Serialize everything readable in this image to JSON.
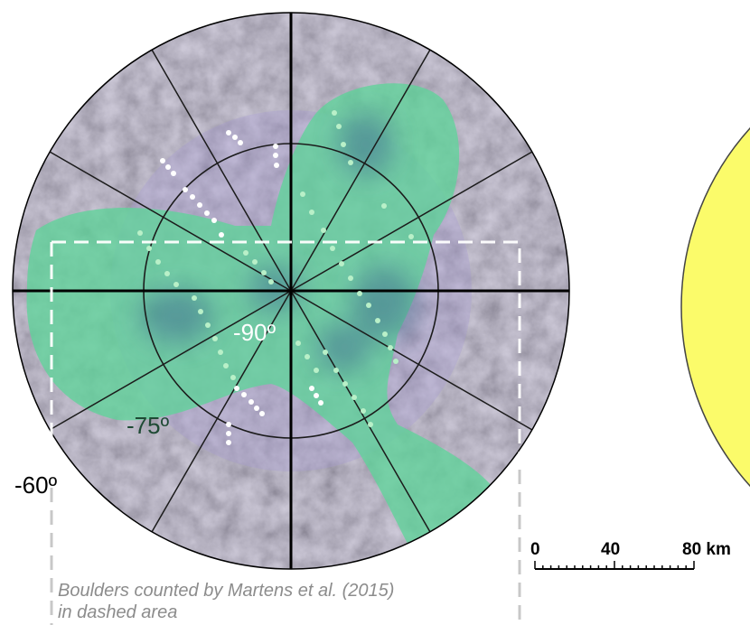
{
  "map": {
    "latitude_labels": {
      "inner": "-90º",
      "middle": "-75º",
      "outer": "-60º"
    },
    "scale_bar": {
      "ticks": [
        "0",
        "40",
        "80 km"
      ]
    },
    "caption": {
      "line1": "Boulders counted by Martens et al. (2015)",
      "line2": "in dashed area"
    },
    "colors": {
      "plume_overlay": "#5fd39a",
      "surface_tint": "#b6acd6",
      "boulder_points": "#ffffff",
      "stripe_points": "#b9f0c8",
      "inset_disc": "#fbfb6a",
      "dashed_area": "#ffffff",
      "caption_border": "#c8c8c8"
    }
  }
}
